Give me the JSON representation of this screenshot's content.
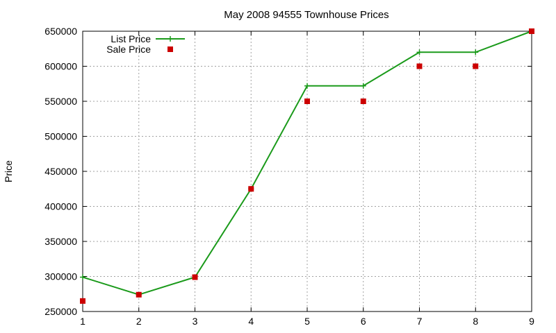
{
  "chart_data": {
    "type": "line",
    "title": "May 2008 94555 Townhouse Prices",
    "xlabel": "",
    "ylabel": "Price",
    "x": [
      1,
      2,
      3,
      4,
      5,
      6,
      7,
      8,
      9
    ],
    "xlim": [
      1,
      9
    ],
    "ylim": [
      250000,
      650000
    ],
    "xticks": [
      "1",
      "2",
      "3",
      "4",
      "5",
      "6",
      "7",
      "8",
      "9"
    ],
    "yticks": [
      "250000",
      "300000",
      "350000",
      "400000",
      "450000",
      "500000",
      "550000",
      "600000",
      "650000"
    ],
    "grid": true,
    "legend_position": "top-left",
    "series": [
      {
        "name": "List Price",
        "style": "line-with-plus-markers",
        "color": "#1a9a1a",
        "values": [
          299000,
          274000,
          299000,
          425000,
          572000,
          572000,
          620000,
          620000,
          650000
        ]
      },
      {
        "name": "Sale Price",
        "style": "square-markers",
        "color": "#cc0000",
        "values": [
          265000,
          274000,
          299000,
          425000,
          550000,
          550000,
          600000,
          600000,
          650000
        ]
      }
    ]
  }
}
